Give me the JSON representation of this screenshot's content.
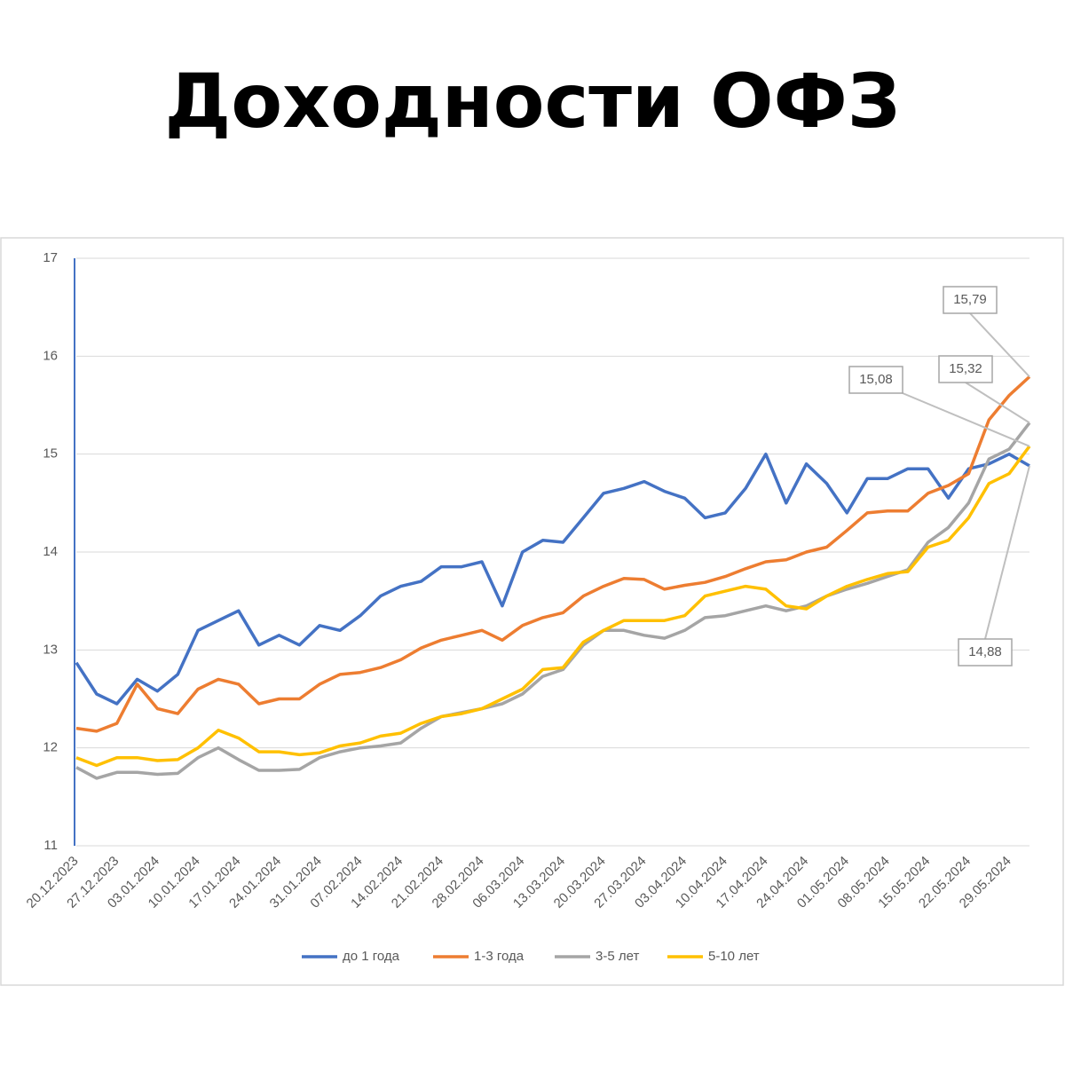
{
  "chart_data": {
    "type": "line",
    "title": "Доходности ОФЗ",
    "categories": [
      "20.12.2023",
      null,
      "27.12.2023",
      null,
      "03.01.2024",
      null,
      "10.01.2024",
      null,
      "17.01.2024",
      null,
      "24.01.2024",
      null,
      "31.01.2024",
      null,
      "07.02.2024",
      null,
      "14.02.2024",
      null,
      "21.02.2024",
      null,
      "28.02.2024",
      null,
      "06.03.2024",
      null,
      "13.03.2024",
      null,
      "20.03.2024",
      null,
      "27.03.2024",
      null,
      "03.04.2024",
      null,
      "10.04.2024",
      null,
      "17.04.2024",
      null,
      "24.04.2024",
      null,
      "01.05.2024",
      null,
      "08.05.2024",
      null,
      "15.05.2024",
      null,
      "22.05.2024",
      null,
      "29.05.2024",
      null
    ],
    "series": [
      {
        "name": "до 1 года",
        "color": "#4472c4",
        "values": [
          12.87,
          12.55,
          12.45,
          12.7,
          12.58,
          12.75,
          13.2,
          13.3,
          13.4,
          13.05,
          13.15,
          13.05,
          13.25,
          13.2,
          13.35,
          13.55,
          13.65,
          13.7,
          13.85,
          13.85,
          13.9,
          13.45,
          14.0,
          14.12,
          14.1,
          14.35,
          14.6,
          14.65,
          14.72,
          14.62,
          14.55,
          14.35,
          14.4,
          14.65,
          15.0,
          14.5,
          14.9,
          14.7,
          14.4,
          14.75,
          14.75,
          14.85,
          14.85,
          14.55,
          14.85,
          14.9,
          15.0,
          14.88
        ]
      },
      {
        "name": "1-3 года",
        "color": "#ed7d31",
        "values": [
          12.2,
          12.17,
          12.25,
          12.65,
          12.4,
          12.35,
          12.6,
          12.7,
          12.65,
          12.45,
          12.5,
          12.5,
          12.65,
          12.75,
          12.77,
          12.82,
          12.9,
          13.02,
          13.1,
          13.15,
          13.2,
          13.1,
          13.25,
          13.33,
          13.38,
          13.55,
          13.65,
          13.73,
          13.72,
          13.62,
          13.66,
          13.69,
          13.75,
          13.83,
          13.9,
          13.92,
          14.0,
          14.05,
          14.22,
          14.4,
          14.42,
          14.42,
          14.6,
          14.68,
          14.8,
          15.35,
          15.6,
          15.79
        ]
      },
      {
        "name": "3-5 лет",
        "color": "#a5a5a5",
        "values": [
          11.8,
          11.69,
          11.75,
          11.75,
          11.73,
          11.74,
          11.9,
          12.0,
          11.88,
          11.77,
          11.77,
          11.78,
          11.9,
          11.96,
          12.0,
          12.02,
          12.05,
          12.2,
          12.32,
          12.36,
          12.4,
          12.45,
          12.55,
          12.73,
          12.8,
          13.05,
          13.2,
          13.2,
          13.15,
          13.12,
          13.2,
          13.33,
          13.35,
          13.4,
          13.45,
          13.4,
          13.45,
          13.55,
          13.62,
          13.68,
          13.75,
          13.82,
          14.1,
          14.25,
          14.5,
          14.95,
          15.05,
          15.32
        ]
      },
      {
        "name": "5-10 лет",
        "color": "#ffc000",
        "values": [
          11.9,
          11.82,
          11.9,
          11.9,
          11.87,
          11.88,
          12.0,
          12.18,
          12.1,
          11.96,
          11.96,
          11.93,
          11.95,
          12.02,
          12.05,
          12.12,
          12.15,
          12.25,
          12.32,
          12.35,
          12.4,
          12.5,
          12.6,
          12.8,
          12.82,
          13.08,
          13.2,
          13.3,
          13.3,
          13.3,
          13.35,
          13.55,
          13.6,
          13.65,
          13.62,
          13.45,
          13.42,
          13.55,
          13.65,
          13.72,
          13.78,
          13.8,
          14.05,
          14.12,
          14.35,
          14.7,
          14.8,
          15.08
        ]
      }
    ],
    "annotations": [
      {
        "text": "15,79",
        "value": 15.79
      },
      {
        "text": "15,32",
        "value": 15.32
      },
      {
        "text": "15,08",
        "value": 15.08
      },
      {
        "text": "14,88",
        "value": 14.88
      }
    ],
    "ylim": [
      11,
      17
    ],
    "yticks": [
      11,
      12,
      13,
      14,
      15,
      16,
      17
    ],
    "grid": true,
    "legend": "bottom"
  }
}
